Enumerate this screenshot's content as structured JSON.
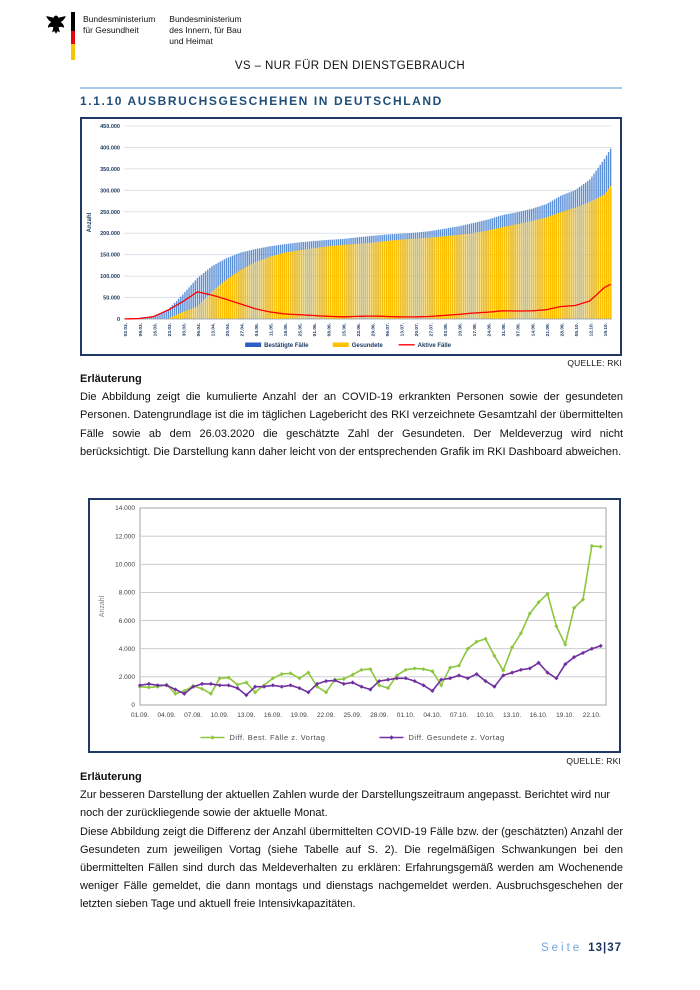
{
  "header": {
    "ministry_health": [
      "Bundesministerium",
      "für Gesundheit"
    ],
    "ministry_interior": [
      "Bundesministerium",
      "des Innern, für Bau",
      "und Heimat"
    ],
    "classification": "VS – NUR FÜR DEN DIENSTGEBRAUCH"
  },
  "section_heading": "1.1.10 AUSBRUCHSGESCHEHEN IN DEUTSCHLAND",
  "figure1_source": "QUELLE: RKI",
  "figure2_source": "QUELLE: RKI",
  "explanation1": {
    "title": "Erläuterung",
    "text": "Die Abbildung zeigt die kumulierte Anzahl der an COVID-19 erkrankten Personen sowie der gesundeten Personen. Datengrundlage ist die im täglichen Lagebericht des RKI verzeichnete Gesamtzahl der übermittelten Fälle sowie ab dem 26.03.2020 die geschätzte Zahl der Gesundeten. Der Meldeverzug wird nicht berücksichtigt. Die Darstellung kann daher leicht von der entsprechenden Grafik im RKI Dashboard abweichen."
  },
  "explanation2": {
    "title": "Erläuterung",
    "para1": "Zur besseren Darstellung der aktuellen Zahlen wurde der Darstellungszeitraum angepasst. Berichtet wird nur noch der zurückliegende sowie der aktuelle Monat.",
    "para2": "Diese Abbildung zeigt die Differenz der Anzahl übermittelten COVID-19 Fälle bzw. der (geschätzten) Anzahl der Gesundeten zum jeweiligen Vortag (siehe Tabelle auf S. 2). Die regelmäßigen Schwankungen bei den übermittelten Fällen sind durch das Meldeverhalten zu erklären: Erfahrungsgemäß werden am Wochenende weniger Fälle gemeldet, die dann montags und dienstags nachgemeldet werden. Ausbruchsgeschehen der letzten sieben Tage und aktuell freie Intensivkapazitäten."
  },
  "footer": {
    "label": "Seite",
    "page": "13|37"
  },
  "chart_data": [
    {
      "type": "bar",
      "title": "",
      "ylabel": "Anzahl",
      "ylim": [
        0,
        450000
      ],
      "grid": true,
      "legend_position": "bottom",
      "ytick_values": [
        0,
        50000,
        100000,
        150000,
        200000,
        250000,
        300000,
        350000,
        400000,
        450000
      ],
      "ytick_labels": [
        "0",
        "50.000",
        "100.000",
        "150.000",
        "200.000",
        "250.000",
        "300.000",
        "350.000",
        "400.000",
        "450.000"
      ],
      "categories": [
        "02.03.",
        "09.03.",
        "16.03.",
        "23.03.",
        "30.03.",
        "06.04.",
        "13.04.",
        "20.04.",
        "27.04.",
        "04.05.",
        "11.05.",
        "18.05.",
        "25.05.",
        "01.06.",
        "08.06.",
        "15.06.",
        "22.06.",
        "29.06.",
        "06.07.",
        "13.07.",
        "20.07.",
        "27.07.",
        "03.08.",
        "10.08.",
        "17.08.",
        "24.08.",
        "31.08.",
        "07.09.",
        "14.09.",
        "21.09.",
        "28.09.",
        "05.10.",
        "12.10.",
        "19.10."
      ],
      "interval_days": 7,
      "days_after_last_tick": 3,
      "series": [
        {
          "name": "Bestätigte Fälle",
          "type": "bar",
          "color": "#2E5EC6",
          "bar_fill": "#5B8FD6",
          "values": [
            150,
            1100,
            6000,
            22700,
            57300,
            95400,
            123000,
            141700,
            155200,
            163200,
            169600,
            174400,
            178600,
            181800,
            184500,
            186500,
            190400,
            193800,
            196900,
            199000,
            201400,
            204900,
            210400,
            216300,
            224000,
            232100,
            242400,
            249000,
            256900,
            267800,
            287400,
            300600,
            325300,
            373200
          ]
        },
        {
          "name": "Gesundete",
          "type": "bar",
          "color": "#FFC000",
          "bar_fill": "#FFC000",
          "values": [
            0,
            0,
            0,
            1000,
            16100,
            28700,
            64300,
            91500,
            114500,
            132700,
            145600,
            154600,
            160300,
            165200,
            169600,
            172600,
            175300,
            177800,
            181900,
            185100,
            187400,
            189800,
            192700,
            196200,
            200800,
            206800,
            214000,
            221000,
            228600,
            236700,
            248900,
            259500,
            273500,
            289600
          ]
        },
        {
          "name": "Aktive Fälle",
          "type": "line",
          "color": "#FF0000",
          "values": [
            150,
            1100,
            5900,
            21000,
            40600,
            63500,
            55800,
            45600,
            34700,
            23700,
            16400,
            11800,
            10000,
            8100,
            6200,
            5100,
            6100,
            7000,
            6000,
            4900,
            4900,
            6000,
            8500,
            10800,
            13900,
            16000,
            19100,
            18600,
            18900,
            21600,
            29000,
            31500,
            42100,
            73600
          ]
        }
      ],
      "end_values": [
        397000,
        310000,
        81000
      ]
    },
    {
      "type": "line",
      "title": "",
      "ylabel": "Anzahl",
      "ylim": [
        0,
        14000
      ],
      "grid": true,
      "legend_position": "bottom",
      "ytick_values": [
        0,
        2000,
        4000,
        6000,
        8000,
        10000,
        12000,
        14000
      ],
      "ytick_labels": [
        "0",
        "2.000",
        "4.000",
        "6.000",
        "8.000",
        "10.000",
        "12.000",
        "14.000"
      ],
      "tick_labels": [
        "01.09.",
        "04.09.",
        "07.09.",
        "10.09.",
        "13.09.",
        "16.09.",
        "19.09.",
        "22.09.",
        "25.09.",
        "28.09.",
        "01.10.",
        "04.10.",
        "07.10.",
        "10.10.",
        "13.10.",
        "16.10.",
        "19.10.",
        "22.10."
      ],
      "tick_every": 3,
      "series": [
        {
          "name": "Diff. Best. Fälle z. Vortag",
          "color": "#8DC63F",
          "marker": "diamond",
          "values": [
            1300,
            1250,
            1300,
            1450,
            800,
            1000,
            1350,
            1150,
            800,
            1900,
            1950,
            1450,
            1600,
            900,
            1400,
            1900,
            2200,
            2250,
            1900,
            2300,
            1300,
            900,
            1800,
            1850,
            2150,
            2500,
            2550,
            1400,
            1200,
            2100,
            2500,
            2600,
            2550,
            2400,
            1400,
            2650,
            2800,
            4000,
            4500,
            4700,
            3500,
            2450,
            4100,
            5100,
            6500,
            7300,
            7900,
            5600,
            4300,
            6900,
            7500,
            11300,
            11250
          ]
        },
        {
          "name": "Diff. Gesundete z. Vortag",
          "color": "#7030A0",
          "marker": "diamond",
          "values": [
            1400,
            1500,
            1400,
            1400,
            1100,
            800,
            1300,
            1500,
            1500,
            1400,
            1400,
            1200,
            700,
            1300,
            1300,
            1400,
            1300,
            1400,
            1200,
            900,
            1500,
            1700,
            1750,
            1500,
            1600,
            1300,
            1100,
            1700,
            1800,
            1900,
            1900,
            1700,
            1400,
            1000,
            1800,
            1900,
            2100,
            1900,
            2200,
            1700,
            1300,
            2100,
            2300,
            2500,
            2600,
            3000,
            2300,
            1900,
            2900,
            3400,
            3700,
            4000,
            4200
          ]
        }
      ]
    }
  ]
}
